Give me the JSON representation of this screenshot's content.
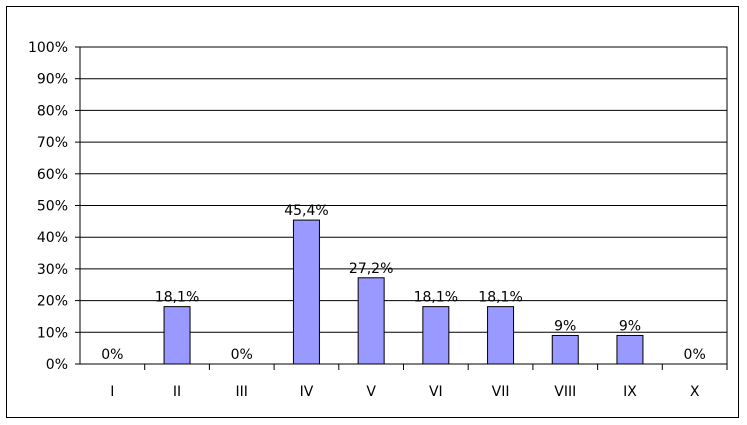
{
  "chart_data": {
    "type": "bar",
    "categories": [
      "I",
      "II",
      "III",
      "IV",
      "V",
      "VI",
      "VII",
      "VIII",
      "IX",
      "X"
    ],
    "values": [
      0,
      18.1,
      0,
      45.4,
      27.2,
      18.1,
      18.1,
      9,
      9,
      0
    ],
    "data_labels": [
      "0%",
      "18,1%",
      "0%",
      "45,4%",
      "27,2%",
      "18,1%",
      "18,1%",
      "9%",
      "9%",
      "0%"
    ],
    "y_tick_labels": [
      "0%",
      "10%",
      "20%",
      "30%",
      "40%",
      "50%",
      "60%",
      "70%",
      "80%",
      "90%",
      "100%"
    ],
    "ylim": [
      0,
      100
    ],
    "grid": true,
    "legend": "none",
    "bar_color": "#9999ff",
    "bar_border_color": "#000000"
  }
}
